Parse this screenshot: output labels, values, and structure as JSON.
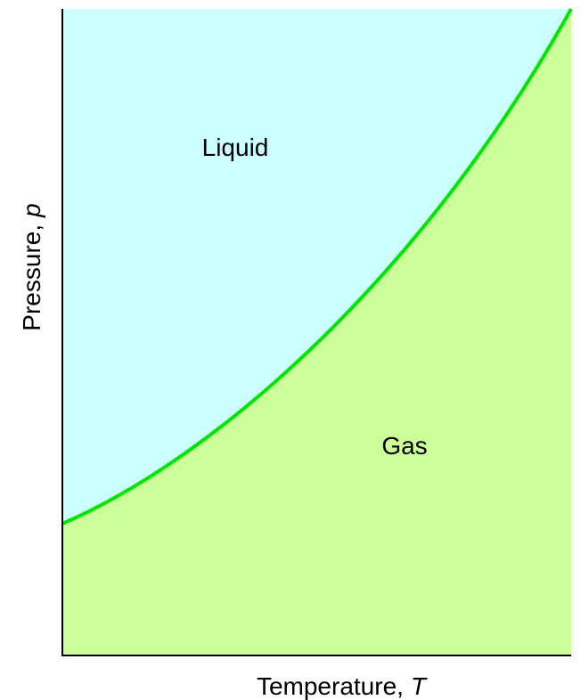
{
  "regions": {
    "upper": "Liquid",
    "lower": "Gas"
  },
  "axes": {
    "x": {
      "label": "Temperature,",
      "symbol": "T"
    },
    "y": {
      "label": "Pressure,",
      "symbol": "p"
    }
  }
}
